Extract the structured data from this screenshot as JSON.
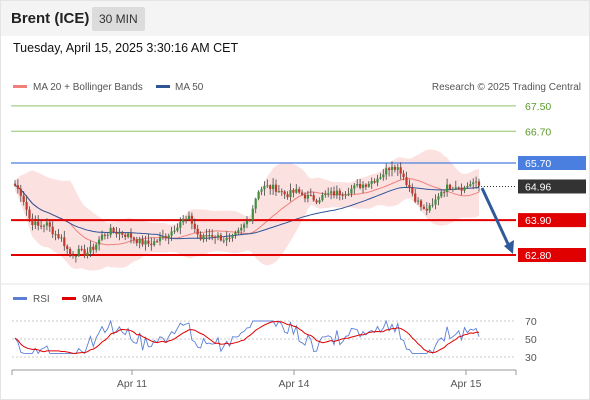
{
  "header": {
    "title": "Brent (ICE)",
    "interval": "30 MIN"
  },
  "timestamp": "Tuesday, April 15, 2025 3:30:16 AM CET",
  "credit": "Research © 2025 Trading Central",
  "chart_data": {
    "type": "candlestick",
    "x_ticks": [
      "Apr 11",
      "Apr 14",
      "Apr 15"
    ],
    "y_range": [
      62.35,
      67.9
    ],
    "legend": [
      {
        "label": "MA 20 + Bollinger Bands",
        "color": "#f0807a"
      },
      {
        "label": "MA 50",
        "color": "#2f5597"
      }
    ],
    "levels": [
      {
        "label": "67.50",
        "value": 67.5,
        "kind": "target",
        "color": "#8fc46a"
      },
      {
        "label": "66.70",
        "value": 66.7,
        "kind": "target",
        "color": "#8fc46a"
      },
      {
        "label": "65.70",
        "value": 65.7,
        "kind": "resistance",
        "color": "#4a7fe0"
      },
      {
        "label": "64.96",
        "value": 64.96,
        "kind": "last",
        "color": "#333333"
      },
      {
        "label": "63.90",
        "value": 63.9,
        "kind": "pivot",
        "color": "#e00000"
      },
      {
        "label": "62.80",
        "value": 62.8,
        "kind": "support",
        "color": "#e00000"
      }
    ],
    "rsi": {
      "legend": [
        {
          "label": "RSI",
          "color": "#5b7fd6"
        },
        {
          "label": "9MA",
          "color": "#e00000"
        }
      ],
      "y_ticks": [
        "70",
        "50",
        "30"
      ],
      "y_range": [
        20,
        80
      ],
      "reference_levels": [
        70,
        50,
        30
      ]
    }
  },
  "icons": {
    "arrow": "arrow-down-icon"
  }
}
